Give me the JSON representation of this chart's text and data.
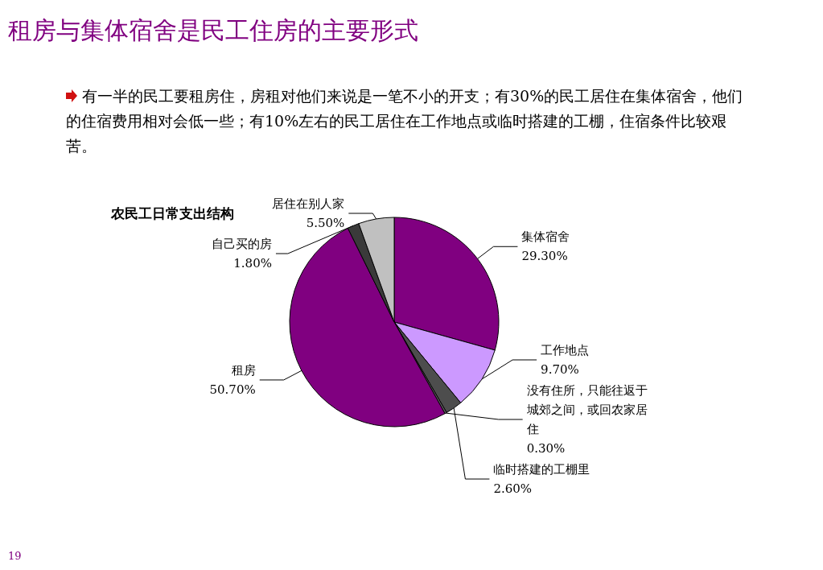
{
  "chart_data": {
    "type": "pie",
    "title": "租房与集体宿舍是民工住房的主要形式",
    "subtitle": "有一半的民工要租房住，房租对他们来说是一笔不小的开支；有30%的民工居住在集体宿舍，他们的住宿费用相对会低一些；有10%左右的民工居住在工作地点或临时搭建的工棚，住宿条件比较艰苦。",
    "annotations": [
      "农民工日常支出结构",
      "19"
    ],
    "categories": [
      "集体宿舍",
      "工作地点",
      "临时搭建的工棚里",
      "没有住所，只能往返于城郊之间，或回农家居住",
      "租房",
      "自己买的房",
      "居住在别人家"
    ],
    "values": [
      29.3,
      9.7,
      2.6,
      0.3,
      50.7,
      1.8,
      5.5
    ],
    "value_labels": [
      "29.30%",
      "9.70%",
      "2.60%",
      "0.30%",
      "50.70%",
      "1.80%",
      "5.50%"
    ],
    "colors": [
      "#800080",
      "#cc99ff",
      "#4d4d4d",
      "#606060",
      "#800080",
      "#3a3a3a",
      "#c0c0c0"
    ]
  }
}
